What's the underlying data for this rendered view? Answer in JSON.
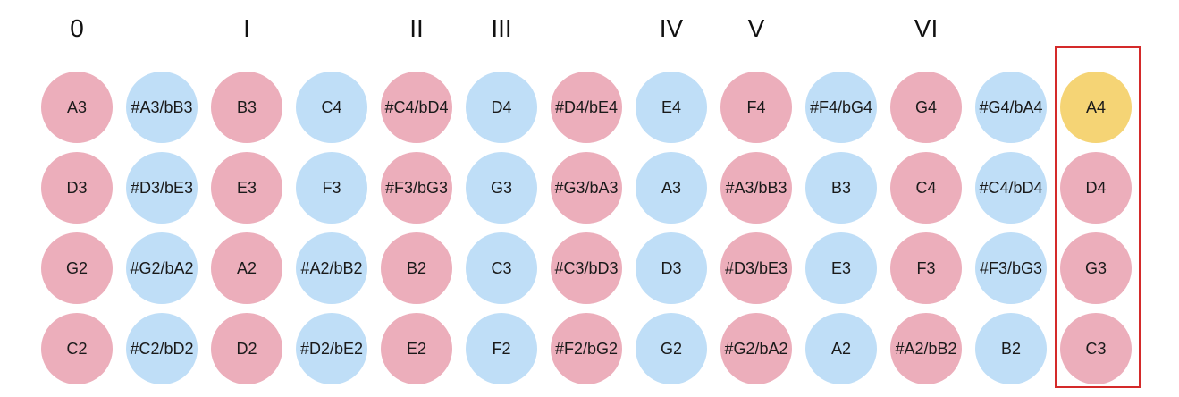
{
  "colors": {
    "natural": "#ecaebb",
    "accidental": "#bfdef7",
    "highlight": "#f5d475",
    "frame": "#d42a2a"
  },
  "fret_markers": [
    "0",
    "",
    "I",
    "",
    "II",
    "III",
    "",
    "IV",
    "V",
    "",
    "VI",
    "",
    ""
  ],
  "strings": [
    {
      "notes": [
        {
          "label": "A3",
          "type": "natural"
        },
        {
          "label": "#A3/bB3",
          "type": "accidental"
        },
        {
          "label": "B3",
          "type": "natural"
        },
        {
          "label": "C4",
          "type": "accidental"
        },
        {
          "label": "#C4/bD4",
          "type": "natural"
        },
        {
          "label": "D4",
          "type": "accidental"
        },
        {
          "label": "#D4/bE4",
          "type": "natural"
        },
        {
          "label": "E4",
          "type": "accidental"
        },
        {
          "label": "F4",
          "type": "natural"
        },
        {
          "label": "#F4/bG4",
          "type": "accidental"
        },
        {
          "label": "G4",
          "type": "natural"
        },
        {
          "label": "#G4/bA4",
          "type": "accidental"
        },
        {
          "label": "A4",
          "type": "highlight"
        }
      ]
    },
    {
      "notes": [
        {
          "label": "D3",
          "type": "natural"
        },
        {
          "label": "#D3/bE3",
          "type": "accidental"
        },
        {
          "label": "E3",
          "type": "natural"
        },
        {
          "label": "F3",
          "type": "accidental"
        },
        {
          "label": "#F3/bG3",
          "type": "natural"
        },
        {
          "label": "G3",
          "type": "accidental"
        },
        {
          "label": "#G3/bA3",
          "type": "natural"
        },
        {
          "label": "A3",
          "type": "accidental"
        },
        {
          "label": "#A3/bB3",
          "type": "natural"
        },
        {
          "label": "B3",
          "type": "accidental"
        },
        {
          "label": "C4",
          "type": "natural"
        },
        {
          "label": "#C4/bD4",
          "type": "accidental"
        },
        {
          "label": "D4",
          "type": "natural"
        }
      ]
    },
    {
      "notes": [
        {
          "label": "G2",
          "type": "natural"
        },
        {
          "label": "#G2/bA2",
          "type": "accidental"
        },
        {
          "label": "A2",
          "type": "natural"
        },
        {
          "label": "#A2/bB2",
          "type": "accidental"
        },
        {
          "label": "B2",
          "type": "natural"
        },
        {
          "label": "C3",
          "type": "accidental"
        },
        {
          "label": "#C3/bD3",
          "type": "natural"
        },
        {
          "label": "D3",
          "type": "accidental"
        },
        {
          "label": "#D3/bE3",
          "type": "natural"
        },
        {
          "label": "E3",
          "type": "accidental"
        },
        {
          "label": "F3",
          "type": "natural"
        },
        {
          "label": "#F3/bG3",
          "type": "accidental"
        },
        {
          "label": "G3",
          "type": "natural"
        }
      ]
    },
    {
      "notes": [
        {
          "label": "C2",
          "type": "natural"
        },
        {
          "label": "#C2/bD2",
          "type": "accidental"
        },
        {
          "label": "D2",
          "type": "natural"
        },
        {
          "label": "#D2/bE2",
          "type": "accidental"
        },
        {
          "label": "E2",
          "type": "natural"
        },
        {
          "label": "F2",
          "type": "accidental"
        },
        {
          "label": "#F2/bG2",
          "type": "natural"
        },
        {
          "label": "G2",
          "type": "accidental"
        },
        {
          "label": "#G2/bA2",
          "type": "natural"
        },
        {
          "label": "A2",
          "type": "accidental"
        },
        {
          "label": "#A2/bB2",
          "type": "natural"
        },
        {
          "label": "B2",
          "type": "accidental"
        },
        {
          "label": "C3",
          "type": "natural"
        }
      ]
    }
  ]
}
